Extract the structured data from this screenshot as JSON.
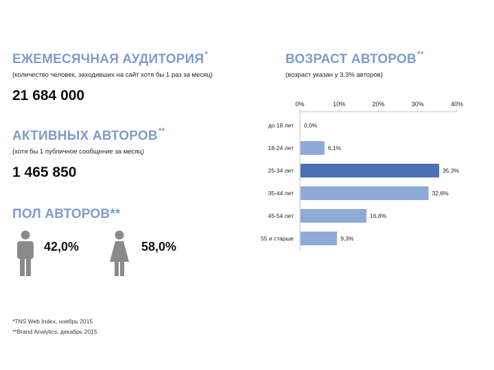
{
  "left": {
    "audience": {
      "title": "ЕЖЕМЕСЯЧНАЯ АУДИТОРИЯ",
      "title_mark": "*",
      "subtitle": "(количество человек, заходивших на сайт хотя бы 1 раз за месяц)",
      "value": "21 684 000"
    },
    "active": {
      "title": "АКТИВНЫХ АВТОРОВ",
      "title_mark": "**",
      "subtitle": "(хотя бы 1 публичное сообщение за месяц)",
      "value": "1 465 850"
    },
    "gender": {
      "title": "ПОЛ АВТОРОВ**",
      "male_icon": "male-person-icon",
      "male_pct": "42,0%",
      "female_icon": "female-person-icon",
      "female_pct": "58,0%"
    },
    "footnotes": [
      "*TNS Web Index, ноябрь 2015",
      "**Brand Analytics, декабрь 2015"
    ]
  },
  "chart_title": "ВОЗРАСТ АВТОРОВ",
  "chart_title_mark": "**",
  "chart_subtitle": "(возраст указан у 3,3% авторов)",
  "colors": {
    "heading": "#7f9cc8",
    "bar": "#8eabd7",
    "bar_highlight": "#4a6fb6",
    "axis": "#bfbfbf"
  },
  "chart_data": {
    "type": "bar",
    "orientation": "horizontal",
    "title": "ВОЗРАСТ АВТОРОВ**",
    "subtitle": "(возраст указан у 3,3% авторов)",
    "categories": [
      "до 18 лет",
      "18-24 лет",
      "25-34 лет",
      "35-44 лет",
      "45-54 лет",
      "55 и старше"
    ],
    "values": [
      0.0,
      6.1,
      35.3,
      32.6,
      16.8,
      9.3
    ],
    "value_labels": [
      "0,0%",
      "6,1%",
      "35,3%",
      "32,6%",
      "16,8%",
      "9,3%"
    ],
    "highlight_index": 2,
    "xlim": [
      0,
      40
    ],
    "xticks": [
      0,
      10,
      20,
      30,
      40
    ],
    "xtick_labels": [
      "0%",
      "10%",
      "20%",
      "30%",
      "40%"
    ],
    "xaxis_position": "top",
    "grid": false,
    "legend": "none"
  }
}
